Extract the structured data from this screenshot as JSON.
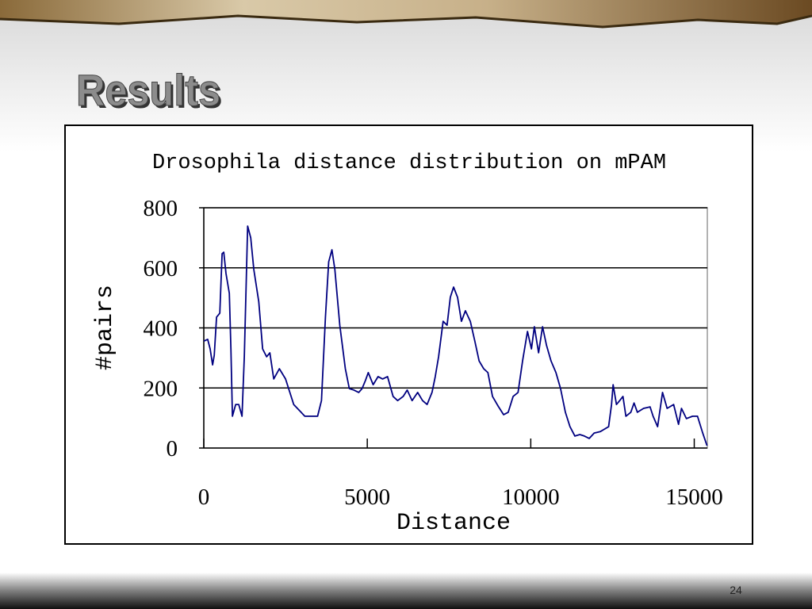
{
  "slide": {
    "title": "Results",
    "page_number": "24"
  },
  "chart_data": {
    "type": "line",
    "title": "Drosophila distance distribution on mPAM",
    "xlabel": "Distance",
    "ylabel": "#pairs",
    "color": "#000080",
    "grid": true,
    "xlim": [
      0,
      15400
    ],
    "xticks": [
      0,
      5000,
      10000,
      15000
    ],
    "ylim": [
      0,
      800
    ],
    "yticks": [
      0,
      200,
      400,
      600,
      800
    ],
    "x": [
      0,
      120,
      195,
      270,
      320,
      390,
      490,
      560,
      610,
      680,
      780,
      830,
      875,
      975,
      1070,
      1170,
      1240,
      1340,
      1435,
      1530,
      1680,
      1800,
      1920,
      2020,
      2140,
      2310,
      2500,
      2750,
      3090,
      3480,
      3600,
      3720,
      3820,
      3920,
      4010,
      4160,
      4330,
      4450,
      4590,
      4740,
      4840,
      4940,
      5030,
      5180,
      5330,
      5470,
      5620,
      5790,
      5930,
      6100,
      6220,
      6370,
      6540,
      6690,
      6830,
      6980,
      7080,
      7180,
      7320,
      7440,
      7540,
      7640,
      7760,
      7880,
      8000,
      8150,
      8290,
      8420,
      8560,
      8690,
      8830,
      9000,
      9170,
      9310,
      9460,
      9610,
      9750,
      9900,
      10020,
      10110,
      10240,
      10360,
      10480,
      10620,
      10770,
      10910,
      11060,
      11200,
      11350,
      11500,
      11640,
      11790,
      11940,
      12130,
      12380,
      12470,
      12520,
      12620,
      12720,
      12820,
      12910,
      13060,
      13160,
      13260,
      13450,
      13650,
      13740,
      13880,
      14030,
      14170,
      14370,
      14520,
      14610,
      14760,
      14950,
      15100,
      15250,
      15390
    ],
    "y": [
      356,
      362,
      330,
      277,
      309,
      436,
      449,
      647,
      652,
      581,
      515,
      330,
      106,
      145,
      145,
      106,
      304,
      739,
      700,
      594,
      488,
      330,
      304,
      317,
      230,
      264,
      230,
      145,
      106,
      106,
      158,
      436,
      620,
      660,
      594,
      409,
      264,
      198,
      193,
      185,
      198,
      224,
      251,
      211,
      238,
      230,
      238,
      172,
      158,
      172,
      193,
      158,
      185,
      158,
      145,
      185,
      238,
      304,
      422,
      409,
      502,
      536,
      502,
      422,
      457,
      422,
      356,
      290,
      264,
      251,
      172,
      140,
      111,
      119,
      172,
      185,
      290,
      388,
      330,
      404,
      317,
      404,
      343,
      290,
      251,
      198,
      119,
      71,
      40,
      45,
      40,
      32,
      50,
      55,
      71,
      145,
      211,
      145,
      158,
      172,
      106,
      119,
      150,
      119,
      132,
      137,
      106,
      71,
      185,
      132,
      145,
      79,
      132,
      98,
      106,
      106,
      53,
      8
    ]
  }
}
